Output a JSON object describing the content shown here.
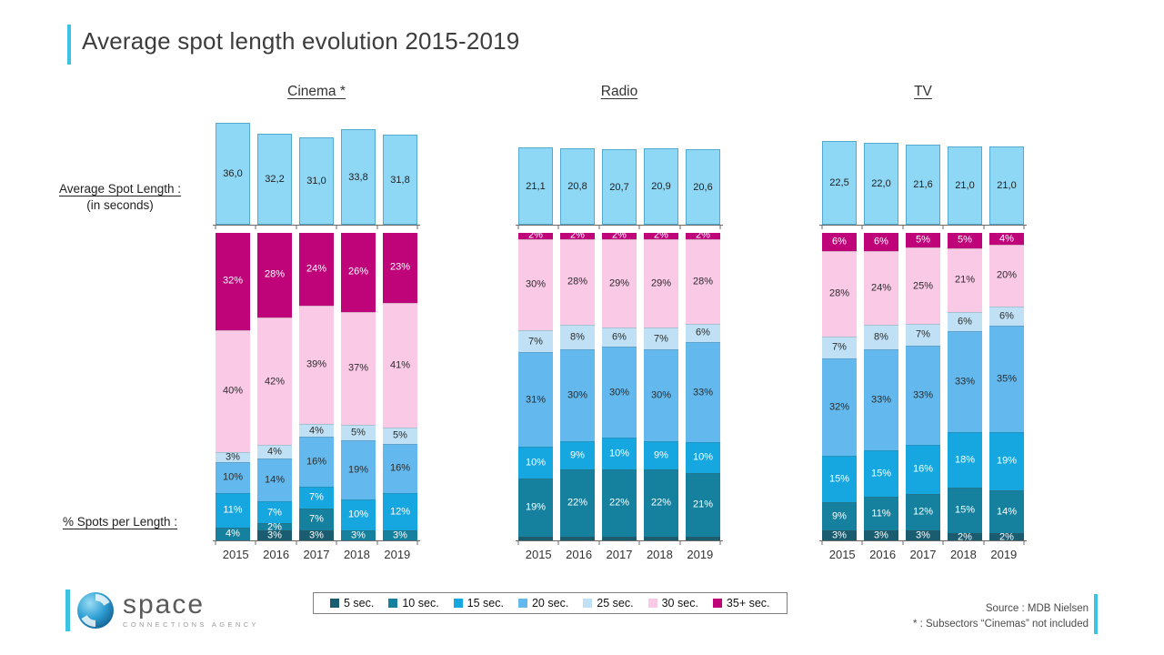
{
  "title": "Average spot length evolution 2015-2019",
  "accent_color": "#3bc3e3",
  "side_labels": {
    "avg_title": "Average Spot Length :",
    "avg_sub": "(in seconds)",
    "pct_title": "% Spots per Length :"
  },
  "legend": {
    "items": [
      {
        "label": "5 sec.",
        "color": "#1a5d70",
        "text_color": "#ffffff"
      },
      {
        "label": "10 sec.",
        "color": "#15819f",
        "text_color": "#ffffff"
      },
      {
        "label": "15 sec.",
        "color": "#17a7e0",
        "text_color": "#ffffff"
      },
      {
        "label": "20 sec.",
        "color": "#63b9ee",
        "text_color": "#2b2b2b"
      },
      {
        "label": "25 sec.",
        "color": "#bfe0f5",
        "text_color": "#2b2b2b"
      },
      {
        "label": "30 sec.",
        "color": "#f9c9e6",
        "text_color": "#2b2b2b"
      },
      {
        "label": "35+ sec.",
        "color": "#bf0379",
        "text_color": "#ffffff"
      }
    ]
  },
  "chart_data": {
    "type": "bar",
    "title": "Average spot length evolution 2015-2019",
    "years": [
      "2015",
      "2016",
      "2017",
      "2018",
      "2019"
    ],
    "avg_bar_color": "#8ed7f5",
    "series_order_bottom_to_top": [
      "5 sec.",
      "10 sec.",
      "15 sec.",
      "20 sec.",
      "25 sec.",
      "30 sec.",
      "35+ sec."
    ],
    "groups": [
      {
        "name": "Cinema *",
        "avg_spot_length_sec": [
          36.0,
          32.2,
          31.0,
          33.8,
          31.8
        ],
        "pct_spots_per_length": {
          "5 sec.": [
            0,
            3,
            3,
            0,
            0
          ],
          "10 sec.": [
            4,
            2,
            7,
            3,
            3
          ],
          "15 sec.": [
            11,
            7,
            7,
            10,
            12
          ],
          "20 sec.": [
            10,
            14,
            16,
            19,
            16
          ],
          "25 sec.": [
            3,
            4,
            4,
            5,
            5
          ],
          "30 sec.": [
            40,
            42,
            39,
            37,
            41
          ],
          "35+ sec.": [
            32,
            28,
            24,
            26,
            23
          ]
        }
      },
      {
        "name": "Radio",
        "avg_spot_length_sec": [
          21.1,
          20.8,
          20.7,
          20.9,
          20.6
        ],
        "pct_spots_per_length": {
          "5 sec.": [
            1,
            1,
            1,
            1,
            1
          ],
          "10 sec.": [
            19,
            22,
            22,
            22,
            21
          ],
          "15 sec.": [
            10,
            9,
            10,
            9,
            10
          ],
          "20 sec.": [
            31,
            30,
            30,
            30,
            33
          ],
          "25 sec.": [
            7,
            8,
            6,
            7,
            6
          ],
          "30 sec.": [
            30,
            28,
            29,
            29,
            28
          ],
          "35+ sec.": [
            2,
            2,
            2,
            2,
            2
          ]
        }
      },
      {
        "name": "TV",
        "avg_spot_length_sec": [
          22.5,
          22.0,
          21.6,
          21.0,
          21.0
        ],
        "pct_spots_per_length": {
          "5 sec.": [
            3,
            3,
            3,
            2,
            2
          ],
          "10 sec.": [
            9,
            11,
            12,
            15,
            14
          ],
          "15 sec.": [
            15,
            15,
            16,
            18,
            19
          ],
          "20 sec.": [
            32,
            33,
            33,
            33,
            35
          ],
          "25 sec.": [
            7,
            8,
            7,
            6,
            6
          ],
          "30 sec.": [
            28,
            24,
            25,
            21,
            20
          ],
          "35+ sec.": [
            6,
            6,
            5,
            5,
            4
          ]
        }
      }
    ]
  },
  "footer": {
    "source": "Source : MDB Nielsen",
    "note": "* : Subsectors “Cinemas” not included",
    "logo": {
      "name": "space",
      "tagline": "CONNECTIONS AGENCY"
    }
  }
}
